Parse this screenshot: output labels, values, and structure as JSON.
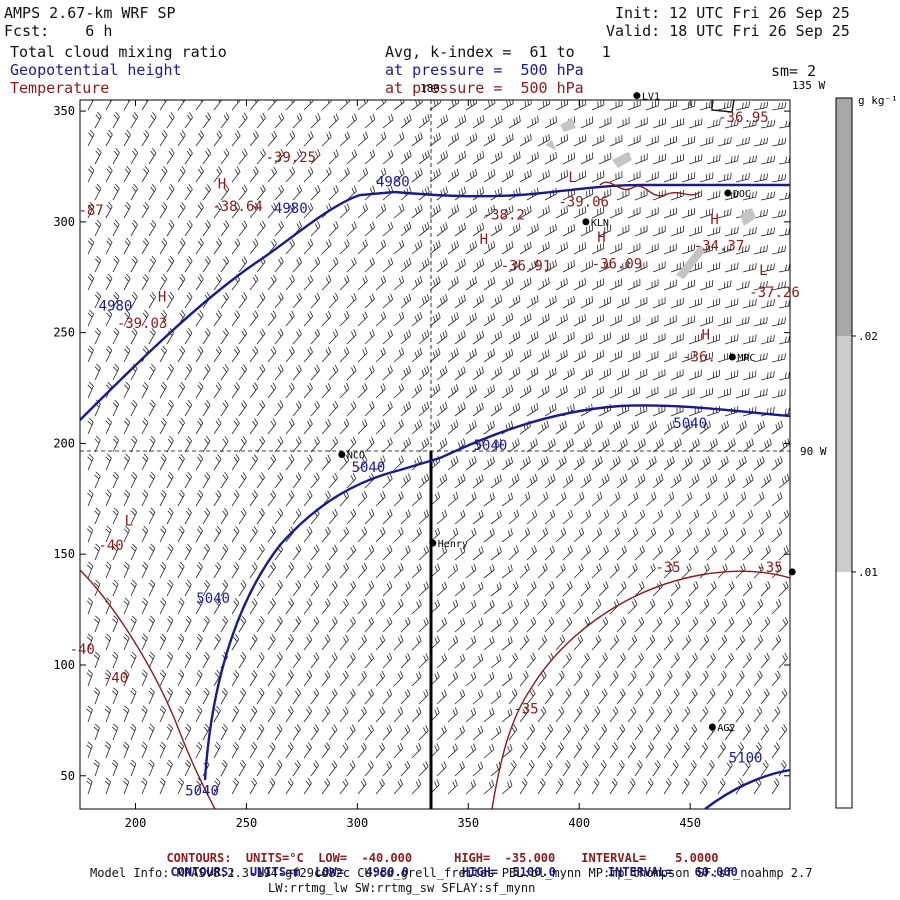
{
  "header": {
    "model": "AMPS 2.67-km WRF SP",
    "fcst": "Fcst:    6 h",
    "init": "Init: 12 UTC Fri 26 Sep 25",
    "valid": "Valid: 18 UTC Fri 26 Sep 25",
    "field1": "Total cloud mixing ratio",
    "field2": "Geopotential height",
    "field3": "Temperature",
    "avg": "Avg, k-index =  61 to   1",
    "pres1": "at pressure =  500 hPa",
    "pres2": "at pressure =  500 hPa",
    "sm": "sm= 2"
  },
  "colorbar": {
    "unit": "g kg⁻¹",
    "labels": [
      ".02",
      ".01"
    ],
    "colors": {
      "light": "#c8c8c8",
      "dark": "#a0a0a0"
    }
  },
  "meridians": {
    "top": "180",
    "right_top": "135 W",
    "right": "90 W"
  },
  "axes": {
    "x_ticks": [
      "200",
      "250",
      "300",
      "350",
      "400",
      "450"
    ],
    "y_ticks": [
      "350",
      "300",
      "250",
      "200",
      "150",
      "100",
      "50"
    ]
  },
  "stations": [
    {
      "name": "LV1",
      "x": 426,
      "y": 357
    },
    {
      "name": "KLN",
      "x": 403,
      "y": 300
    },
    {
      "name": "DOC",
      "x": 467,
      "y": 313
    },
    {
      "name": "MRC",
      "x": 469,
      "y": 239
    },
    {
      "name": "NCO",
      "x": 293,
      "y": 195
    },
    {
      "name": "Henry",
      "x": 334,
      "y": 155
    },
    {
      "name": "AG2",
      "x": 460,
      "y": 72
    }
  ],
  "stations_unlabeled": [
    {
      "x": 496,
      "y": 142
    }
  ],
  "height_labels": [
    {
      "t": "4980",
      "x": 316,
      "y": 316
    },
    {
      "t": "4980",
      "x": 191,
      "y": 260
    },
    {
      "t": "4980",
      "x": 270,
      "y": 304
    },
    {
      "t": "5040",
      "x": 450,
      "y": 207
    },
    {
      "t": "5040",
      "x": 360,
      "y": 197
    },
    {
      "t": "5040",
      "x": 305,
      "y": 187
    },
    {
      "t": "5040",
      "x": 235,
      "y": 128
    },
    {
      "t": "5040",
      "x": 230,
      "y": 41
    },
    {
      "t": "5100",
      "x": 475,
      "y": 56
    }
  ],
  "temp_labels": [
    {
      "t": "-39.25",
      "x": 270,
      "y": 327
    },
    {
      "t": "-38.64",
      "x": 246,
      "y": 305
    },
    {
      "t": "-38.2",
      "x": 366,
      "y": 301
    },
    {
      "t": "-36.91",
      "x": 376,
      "y": 278
    },
    {
      "t": "-36.09",
      "x": 417,
      "y": 279
    },
    {
      "t": "-34.37",
      "x": 463,
      "y": 287
    },
    {
      "t": "-39.06",
      "x": 402,
      "y": 307
    },
    {
      "t": "-36.95",
      "x": 474,
      "y": 345
    },
    {
      "t": "-37.26",
      "x": 488,
      "y": 266
    },
    {
      "t": "-36.",
      "x": 454,
      "y": 237
    },
    {
      "t": "-39.03",
      "x": 203,
      "y": 252
    },
    {
      "t": "-87",
      "x": 180,
      "y": 303
    },
    {
      "t": "-40",
      "x": 189,
      "y": 152
    },
    {
      "t": "-40",
      "x": 176,
      "y": 105
    },
    {
      "t": "-40",
      "x": 191,
      "y": 92
    },
    {
      "t": "-35",
      "x": 440,
      "y": 142
    },
    {
      "t": "-35",
      "x": 486,
      "y": 142
    },
    {
      "t": "-35",
      "x": 376,
      "y": 78
    }
  ],
  "hl_markers": [
    {
      "t": "H",
      "x": 239,
      "y": 315,
      "c": "temp"
    },
    {
      "t": "H",
      "x": 357,
      "y": 290,
      "c": "temp"
    },
    {
      "t": "H",
      "x": 410,
      "y": 291,
      "c": "temp"
    },
    {
      "t": "H",
      "x": 461,
      "y": 299,
      "c": "temp"
    },
    {
      "t": "H",
      "x": 457,
      "y": 247,
      "c": "temp"
    },
    {
      "t": "L",
      "x": 397,
      "y": 318,
      "c": "temp"
    },
    {
      "t": "L",
      "x": 483,
      "y": 276,
      "c": "temp"
    },
    {
      "t": "L",
      "x": 197,
      "y": 163,
      "c": "temp"
    },
    {
      "t": "H",
      "x": 212,
      "y": 264,
      "c": "temp"
    }
  ],
  "footer": {
    "line1_left": "CONTOURS:  UNITS=°C  LOW=  -40.000",
    "line1_mid": "HIGH=  -35.000",
    "line1_right": "INTERVAL=    5.0000",
    "line2_left": "CONTOURS:  UNITS=m  LOW=   4980.0",
    "line2_mid": "HIGH=  5100.0",
    "line2_right": "INTERVAL=   60.000",
    "model_info": "Model Info: MPASv8.2.3-194-gf29cd82c CU:cu_grell_freitas PBL:bl_mynn MP:mp_thompson SF:sf_noahmp 2.7",
    "model_info2": "LW:rrtmg_lw SW:rrtmg_sw SFLAY:sf_mynn"
  }
}
